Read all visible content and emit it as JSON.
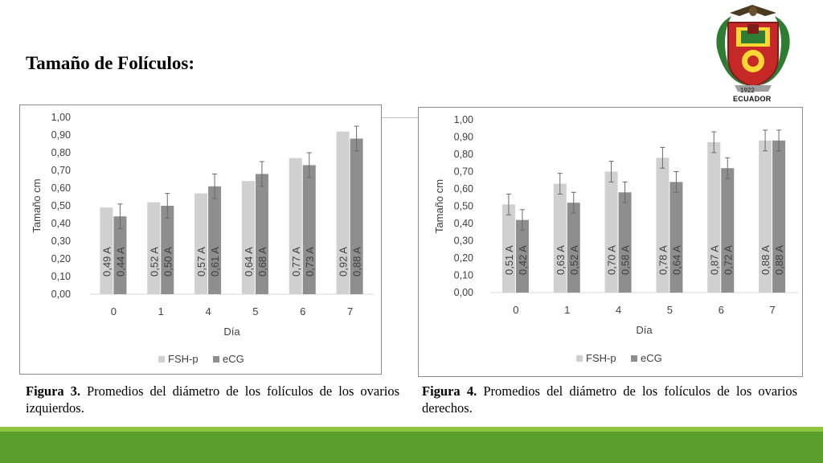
{
  "slide_title": "Tamaño de Folículos:",
  "logo": {
    "text": "ECUADOR",
    "year": "1922"
  },
  "colors": {
    "fsh": "#d0d0d0",
    "ecg": "#8e8e8e",
    "band_light": "#8dc63f",
    "band_dark": "#5a9f2d"
  },
  "captions": [
    {
      "label": "Figura 3.",
      "text": " Promedios del diámetro de los folículos de los ovarios izquierdos."
    },
    {
      "label": "Figura 4.",
      "text": " Promedios del diámetro de los folículos de los ovarios derechos."
    }
  ],
  "chart_data": [
    {
      "type": "bar",
      "xlabel": "Día",
      "ylabel": "Tamaño cm",
      "ylim": [
        0,
        1
      ],
      "yticks": [
        "0,00",
        "0,10",
        "0,20",
        "0,30",
        "0,40",
        "0,50",
        "0,60",
        "0,70",
        "0,80",
        "0,90",
        "1,00"
      ],
      "categories": [
        "0",
        "1",
        "4",
        "5",
        "6",
        "7"
      ],
      "series": [
        {
          "name": "FSH-p",
          "values": [
            0.49,
            0.52,
            0.57,
            0.64,
            0.77,
            0.92
          ],
          "labels": [
            "0,49",
            "0,52",
            "0,57",
            "0,64",
            "0,77",
            "0,92"
          ],
          "letters": [
            "A",
            "A",
            "A",
            "A",
            "A",
            "A"
          ],
          "error": [
            0,
            0,
            0,
            0,
            0,
            0
          ]
        },
        {
          "name": "eCG",
          "values": [
            0.44,
            0.5,
            0.61,
            0.68,
            0.73,
            0.88
          ],
          "labels": [
            "0,44",
            "0,50",
            "0,61",
            "0,68",
            "0,73",
            "0,88"
          ],
          "letters": [
            "A",
            "A",
            "A",
            "A",
            "A",
            "A"
          ],
          "error": [
            0.07,
            0.07,
            0.07,
            0.07,
            0.07,
            0.07
          ]
        }
      ],
      "legend": "bottom"
    },
    {
      "type": "bar",
      "xlabel": "Día",
      "ylabel": "Tamaño cm",
      "ylim": [
        0,
        1
      ],
      "yticks": [
        "0,00",
        "0,10",
        "0,20",
        "0,30",
        "0,40",
        "0,50",
        "0,60",
        "0,70",
        "0,80",
        "0,90",
        "1,00"
      ],
      "categories": [
        "0",
        "1",
        "4",
        "5",
        "6",
        "7"
      ],
      "series": [
        {
          "name": "FSH-p",
          "values": [
            0.51,
            0.63,
            0.7,
            0.78,
            0.87,
            0.88
          ],
          "labels": [
            "0,51",
            "0,63",
            "0,70",
            "0,78",
            "0,87",
            "0,88"
          ],
          "letters": [
            "A",
            "A",
            "A",
            "A",
            "A",
            "A"
          ],
          "error": [
            0.06,
            0.06,
            0.06,
            0.06,
            0.06,
            0.06
          ]
        },
        {
          "name": "eCG",
          "values": [
            0.42,
            0.52,
            0.58,
            0.64,
            0.72,
            0.88
          ],
          "labels": [
            "0,42",
            "0,52",
            "0,58",
            "0,64",
            "0,72",
            "0,88"
          ],
          "letters": [
            "A",
            "A",
            "A",
            "A",
            "A",
            "A"
          ],
          "error": [
            0.06,
            0.06,
            0.06,
            0.06,
            0.06,
            0.06
          ]
        }
      ],
      "legend": "bottom"
    }
  ]
}
